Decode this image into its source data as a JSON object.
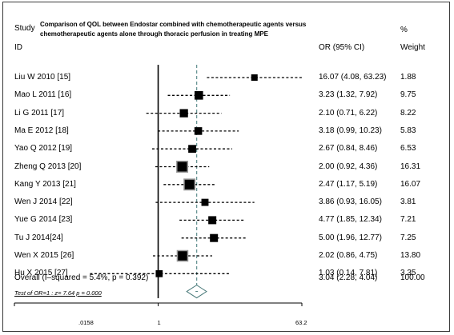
{
  "header": {
    "study_label": "Study",
    "id_label": "ID",
    "title_line1": "Comparison of QOL between Endostar combined with chemotherapeutic agents versus",
    "title_line2": "chemotherapeutic agents alone through thoracic perfusion in treating MPE",
    "or_label": "OR (95% CI)",
    "percent_label": "%",
    "weight_label": "Weight"
  },
  "overall": {
    "label": "Overall  (I–squared = 5.4%, p = 0.392)",
    "ci_text": "3.04 (2.28, 4.04)",
    "weight_text": "100.00"
  },
  "test_text": "Test of OR=1 : z=  7.64 p = 0.000",
  "axis": {
    "ticks": [
      ".0158",
      "1",
      "63.2"
    ]
  },
  "chart_data": {
    "type": "forest",
    "scale": "log",
    "xlim": [
      0.0158,
      63.2
    ],
    "null_line": 1,
    "studies": [
      {
        "label": "Liu W 2010 [15]",
        "or": 16.07,
        "lo": 4.08,
        "hi": 63.23,
        "ci_text": "16.07 (4.08, 63.23)",
        "weight": 1.88,
        "weight_text": "1.88"
      },
      {
        "label": "Mao L 2011 [16]",
        "or": 3.23,
        "lo": 1.32,
        "hi": 7.92,
        "ci_text": "3.23 (1.32, 7.92)",
        "weight": 9.75,
        "weight_text": "9.75"
      },
      {
        "label": "Li G 2011 [17]",
        "or": 2.1,
        "lo": 0.71,
        "hi": 6.22,
        "ci_text": "2.10 (0.71, 6.22)",
        "weight": 8.22,
        "weight_text": "8.22"
      },
      {
        "label": "Ma E 2012 [18]",
        "or": 3.18,
        "lo": 0.99,
        "hi": 10.23,
        "ci_text": "3.18 (0.99, 10.23)",
        "weight": 5.83,
        "weight_text": "5.83"
      },
      {
        "label": "Yao Q 2012 [19]",
        "or": 2.67,
        "lo": 0.84,
        "hi": 8.46,
        "ci_text": "2.67 (0.84, 8.46)",
        "weight": 6.53,
        "weight_text": "6.53"
      },
      {
        "label": "Zheng Q 2013 [20]",
        "or": 2.0,
        "lo": 0.92,
        "hi": 4.36,
        "ci_text": "2.00 (0.92, 4.36)",
        "weight": 16.31,
        "weight_text": "16.31"
      },
      {
        "label": "Kang Y 2013 [21]",
        "or": 2.47,
        "lo": 1.17,
        "hi": 5.19,
        "ci_text": "2.47 (1.17, 5.19)",
        "weight": 16.07,
        "weight_text": "16.07"
      },
      {
        "label": "Wen J 2014 [22]",
        "or": 3.86,
        "lo": 0.93,
        "hi": 16.05,
        "ci_text": "3.86 (0.93, 16.05)",
        "weight": 3.81,
        "weight_text": "3.81"
      },
      {
        "label": "Yue G 2014 [23]",
        "or": 4.77,
        "lo": 1.85,
        "hi": 12.34,
        "ci_text": "4.77 (1.85, 12.34)",
        "weight": 7.21,
        "weight_text": "7.21"
      },
      {
        "label": "Tu J 2014[24]",
        "or": 5.0,
        "lo": 1.96,
        "hi": 12.77,
        "ci_text": "5.00 (1.96, 12.77)",
        "weight": 7.25,
        "weight_text": "7.25"
      },
      {
        "label": "Wen X 2015 [26]",
        "or": 2.02,
        "lo": 0.86,
        "hi": 4.75,
        "ci_text": "2.02 (0.86, 4.75)",
        "weight": 13.8,
        "weight_text": "13.80"
      },
      {
        "label": "Hu X 2015 [27]",
        "or": 1.03,
        "lo": 0.14,
        "hi": 7.81,
        "ci_text": "1.03 (0.14, 7.81)",
        "weight": 3.35,
        "weight_text": "3.35"
      }
    ],
    "overall": {
      "or": 3.04,
      "lo": 2.28,
      "hi": 4.04
    },
    "colors": {
      "box": "#000000",
      "shaded_box": "#9a9a9a",
      "dashed_line": "#5f8f8f",
      "diamond": "#4a7a7a"
    }
  }
}
